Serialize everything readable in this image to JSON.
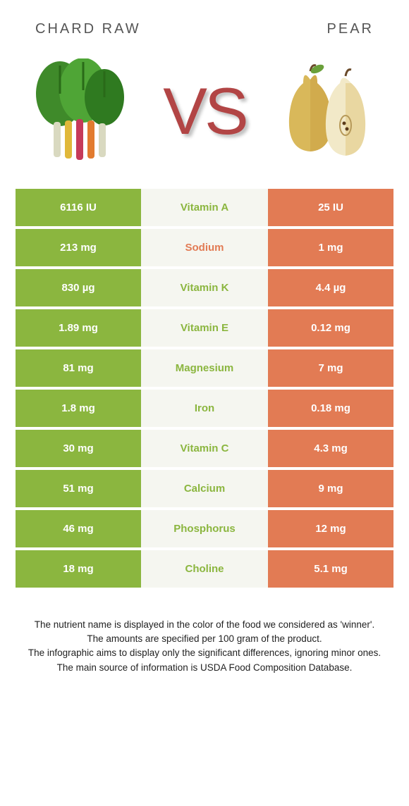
{
  "colors": {
    "left_bg": "#8bb63f",
    "right_bg": "#e27b54",
    "mid_bg": "#f5f6f0",
    "left_text": "#8bb63f",
    "right_text": "#e27b54",
    "vs": "#b24545",
    "header_text": "#555555"
  },
  "header": {
    "left": "CHARD RAW",
    "right": "PEAR"
  },
  "vs_text": "VS",
  "rows": [
    {
      "left": "6116 IU",
      "name": "Vitamin A",
      "right": "25 IU",
      "winner": "left"
    },
    {
      "left": "213 mg",
      "name": "Sodium",
      "right": "1 mg",
      "winner": "right"
    },
    {
      "left": "830 µg",
      "name": "Vitamin K",
      "right": "4.4 µg",
      "winner": "left"
    },
    {
      "left": "1.89 mg",
      "name": "Vitamin E",
      "right": "0.12 mg",
      "winner": "left"
    },
    {
      "left": "81 mg",
      "name": "Magnesium",
      "right": "7 mg",
      "winner": "left"
    },
    {
      "left": "1.8 mg",
      "name": "Iron",
      "right": "0.18 mg",
      "winner": "left"
    },
    {
      "left": "30 mg",
      "name": "Vitamin C",
      "right": "4.3 mg",
      "winner": "left"
    },
    {
      "left": "51 mg",
      "name": "Calcium",
      "right": "9 mg",
      "winner": "left"
    },
    {
      "left": "46 mg",
      "name": "Phosphorus",
      "right": "12 mg",
      "winner": "left"
    },
    {
      "left": "18 mg",
      "name": "Choline",
      "right": "5.1 mg",
      "winner": "left"
    }
  ],
  "footnotes": [
    "The nutrient name is displayed in the color of the food we considered as 'winner'.",
    "The amounts are specified per 100 gram of the product.",
    "The infographic aims to display only the significant differences, ignoring minor ones.",
    "The main source of information is USDA Food Composition Database."
  ]
}
